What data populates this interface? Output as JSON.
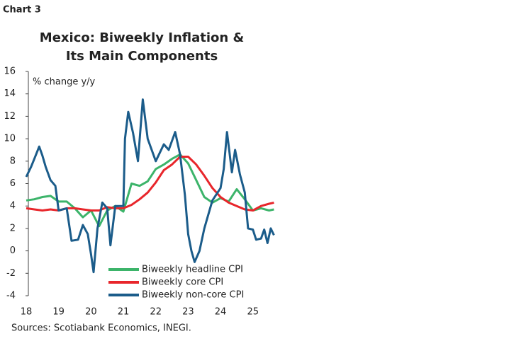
{
  "label": "Chart 3",
  "source": "Sources: Scotiabank Economics, INEGI.",
  "chart_data": {
    "type": "line",
    "title": [
      "Mexico: Biweekly Inflation &",
      "Its Main Components"
    ],
    "y_label": "% change y/y",
    "xlim": [
      18,
      25.75
    ],
    "xticks": [
      18,
      19,
      20,
      21,
      22,
      23,
      24,
      25
    ],
    "ylim": [
      -4,
      16
    ],
    "yticks": [
      -4,
      -2,
      0,
      2,
      4,
      6,
      8,
      10,
      12,
      14,
      16
    ],
    "grid": false,
    "series": [
      {
        "name": "Biweekly headline CPI",
        "color": "#3cb46a",
        "x": [
          18,
          18.25,
          18.5,
          18.75,
          19,
          19.25,
          19.5,
          19.75,
          20,
          20.25,
          20.5,
          20.75,
          21,
          21.25,
          21.5,
          21.75,
          22,
          22.25,
          22.5,
          22.75,
          23,
          23.25,
          23.5,
          23.75,
          24,
          24.25,
          24.5,
          24.75,
          25,
          25.25,
          25.5,
          25.65
        ],
        "values": [
          4.5,
          4.6,
          4.8,
          4.9,
          4.4,
          4.4,
          3.8,
          3.0,
          3.6,
          2.2,
          3.6,
          4.0,
          3.5,
          6.0,
          5.8,
          6.2,
          7.3,
          7.7,
          8.2,
          8.6,
          7.8,
          6.3,
          4.8,
          4.3,
          4.7,
          4.4,
          5.5,
          4.6,
          3.6,
          3.8,
          3.6,
          3.7
        ]
      },
      {
        "name": "Biweekly core CPI",
        "color": "#e8262b",
        "x": [
          18,
          18.25,
          18.5,
          18.75,
          19,
          19.25,
          19.5,
          19.75,
          20,
          20.25,
          20.5,
          20.75,
          21,
          21.25,
          21.5,
          21.75,
          22,
          22.25,
          22.5,
          22.75,
          23,
          23.25,
          23.5,
          23.75,
          24,
          24.25,
          24.5,
          24.75,
          25,
          25.25,
          25.5,
          25.65
        ],
        "values": [
          3.8,
          3.7,
          3.6,
          3.7,
          3.6,
          3.8,
          3.8,
          3.7,
          3.6,
          3.6,
          3.9,
          3.8,
          3.8,
          4.1,
          4.6,
          5.2,
          6.1,
          7.2,
          7.7,
          8.4,
          8.4,
          7.7,
          6.7,
          5.6,
          4.8,
          4.3,
          4.0,
          3.7,
          3.6,
          4.0,
          4.2,
          4.3
        ]
      },
      {
        "name": "Biweekly non-core CPI",
        "color": "#1b5c8a",
        "x": [
          18,
          18.15,
          18.25,
          18.4,
          18.5,
          18.6,
          18.75,
          18.9,
          19,
          19.25,
          19.4,
          19.6,
          19.75,
          19.9,
          20,
          20.08,
          20.2,
          20.35,
          20.5,
          20.6,
          20.75,
          21,
          21.05,
          21.15,
          21.3,
          21.45,
          21.6,
          21.75,
          22,
          22.25,
          22.4,
          22.6,
          22.75,
          22.9,
          23,
          23.1,
          23.2,
          23.35,
          23.5,
          23.75,
          24,
          24.1,
          24.2,
          24.35,
          24.45,
          24.6,
          24.75,
          24.85,
          25,
          25.1,
          25.25,
          25.35,
          25.45,
          25.55,
          25.65
        ],
        "values": [
          6.6,
          7.5,
          8.2,
          9.3,
          8.5,
          7.5,
          6.3,
          5.8,
          3.6,
          3.8,
          0.9,
          1.0,
          2.3,
          1.5,
          -0.3,
          -1.9,
          2.0,
          4.3,
          3.8,
          0.5,
          4.0,
          4.0,
          10.0,
          12.4,
          10.5,
          8.0,
          13.5,
          10.0,
          8.0,
          9.5,
          9.0,
          10.6,
          8.6,
          5.0,
          1.5,
          0.0,
          -1.0,
          0.0,
          2.0,
          4.5,
          5.6,
          7.3,
          10.6,
          7.0,
          9.0,
          6.8,
          5.2,
          2.0,
          1.9,
          1.0,
          1.1,
          1.9,
          0.7,
          2.0,
          1.4
        ]
      }
    ]
  }
}
